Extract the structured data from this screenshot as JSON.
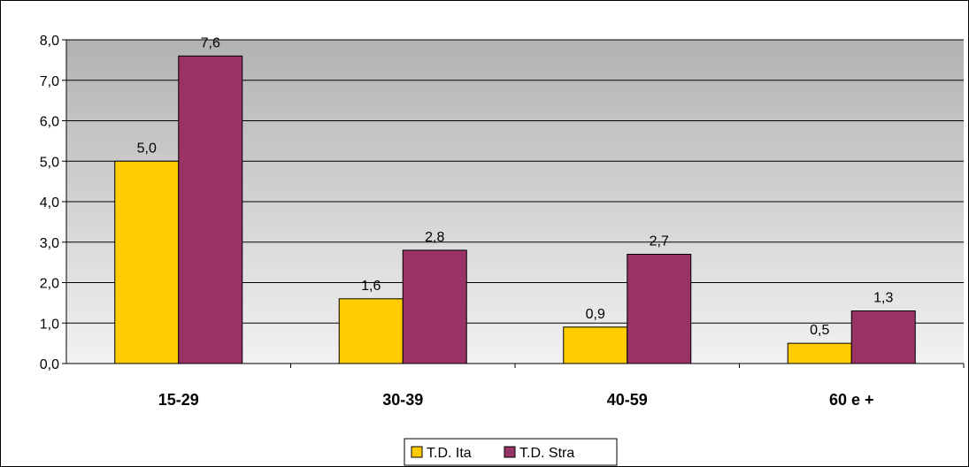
{
  "chart_data": {
    "type": "bar",
    "title": "",
    "xlabel": "",
    "ylabel": "",
    "categories": [
      "15-29",
      "30-39",
      "40-59",
      "60 e +"
    ],
    "series": [
      {
        "name": "T.D. Ita",
        "values": [
          5.0,
          1.6,
          0.9,
          0.5
        ],
        "labels": [
          "5,0",
          "1,6",
          "0,9",
          "0,5"
        ]
      },
      {
        "name": "T.D. Stra",
        "values": [
          7.6,
          2.8,
          2.7,
          1.3
        ],
        "labels": [
          "7,6",
          "2,8",
          "2,7",
          "1,3"
        ]
      }
    ],
    "ylim": [
      0,
      8
    ],
    "yticks": [
      0,
      1,
      2,
      3,
      4,
      5,
      6,
      7,
      8
    ],
    "ytick_labels": [
      "0,0",
      "1,0",
      "2,0",
      "3,0",
      "4,0",
      "5,0",
      "6,0",
      "7,0",
      "8,0"
    ],
    "grid": true,
    "legend": "bottom-center",
    "colors": {
      "series": [
        "#FFCC00",
        "#993366"
      ],
      "plot_bg_top": "#B2B2B2",
      "plot_bg_bottom": "#F2F2F2"
    }
  }
}
